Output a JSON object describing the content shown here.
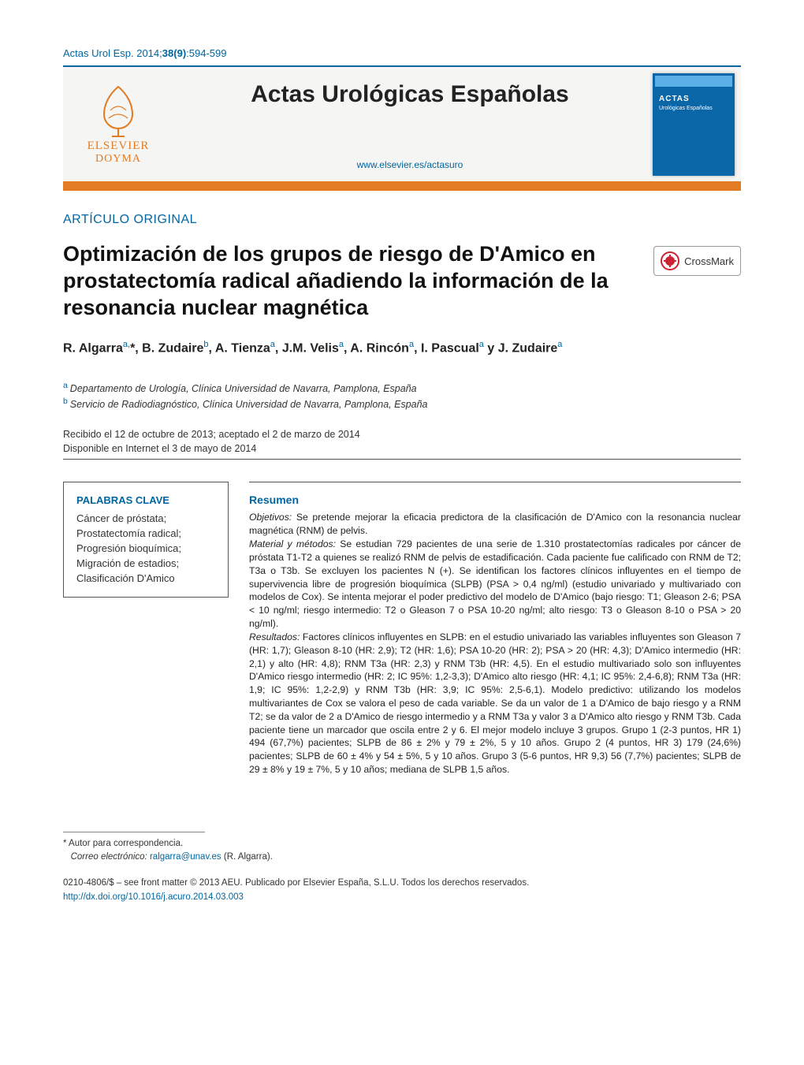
{
  "running_head": {
    "journal_abbrev": "Actas Urol Esp.",
    "year": "2014",
    "volume": "38",
    "issue": "9",
    "pages": "594-599"
  },
  "masthead": {
    "publisher_top": "ELSEVIER",
    "publisher_bottom": "DOYMA",
    "journal_title": "Actas Urológicas Españolas",
    "journal_url": "www.elsevier.es/actasuro",
    "cover_brand_top": "ACTAS",
    "cover_brand_sub": "Urológicas Españolas"
  },
  "section_label": "ARTÍCULO ORIGINAL",
  "article_title": "Optimización de los grupos de riesgo de D'Amico en prostatectomía radical añadiendo la información de la resonancia nuclear magnética",
  "crossmark_label": "CrossMark",
  "authors_html": "R. Algarra<sup>a,</sup>*, B. Zudaire<sup>b</sup>, A. Tienza<sup>a</sup>, J.M. Velis<sup>a</sup>, A. Rincón<sup>a</sup>, I. Pascual<sup>a</sup> y J. Zudaire<sup>a</sup>",
  "affiliations": [
    {
      "marker": "a",
      "text": "Departamento de Urología, Clínica Universidad de Navarra, Pamplona, España"
    },
    {
      "marker": "b",
      "text": "Servicio de Radiodiagnóstico, Clínica Universidad de Navarra, Pamplona, España"
    }
  ],
  "dates": {
    "received_accepted": "Recibido el 12 de octubre de 2013; aceptado el 2 de marzo de 2014",
    "online": "Disponible en Internet el 3 de mayo de 2014"
  },
  "keywords": {
    "heading": "PALABRAS CLAVE",
    "items": [
      "Cáncer de próstata;",
      "Prostatectomía radical;",
      "Progresión bioquímica;",
      "Migración de estadios;",
      "Clasificación D'Amico"
    ]
  },
  "abstract": {
    "heading": "Resumen",
    "body_html": "<i>Objetivos:</i> Se pretende mejorar la eficacia predictora de la clasificación de D'Amico con la resonancia nuclear magnética (RNM) de pelvis.<br><i>Material y métodos:</i> Se estudian 729 pacientes de una serie de 1.310 prostatectomías radicales por cáncer de próstata T1-T2 a quienes se realizó RNM de pelvis de estadificación. Cada paciente fue calificado con RNM de T2; T3a o T3b. Se excluyen los pacientes N (+). Se identifican los factores clínicos influyentes en el tiempo de supervivencia libre de progresión bioquímica (SLPB) (PSA > 0,4 ng/ml) (estudio univariado y multivariado con modelos de Cox). Se intenta mejorar el poder predictivo del modelo de D'Amico (bajo riesgo: T1; Gleason 2-6; PSA < 10 ng/ml; riesgo intermedio: T2 o Gleason 7 o PSA 10-20 ng/ml; alto riesgo: T3 o Gleason 8-10 o PSA > 20 ng/ml).<br><i>Resultados:</i> Factores clínicos influyentes en SLPB: en el estudio univariado las variables influyentes son Gleason 7 (HR: 1,7); Gleason 8-10 (HR: 2,9); T2 (HR: 1,6); PSA 10-20 (HR: 2); PSA > 20 (HR: 4,3); D'Amico intermedio (HR: 2,1) y alto (HR: 4,8); RNM T3a (HR: 2,3) y RNM T3b (HR: 4,5). En el estudio multivariado solo son influyentes D'Amico riesgo intermedio (HR: 2; IC 95%: 1,2-3,3); D'Amico alto riesgo (HR: 4,1; IC 95%: 2,4-6,8); RNM T3a (HR: 1,9; IC 95%: 1,2-2,9) y RNM T3b (HR: 3,9; IC 95%: 2,5-6,1). Modelo predictivo: utilizando los modelos multivariantes de Cox se valora el peso de cada variable. Se da un valor de 1 a D'Amico de bajo riesgo y a RNM T2; se da valor de 2 a D'Amico de riesgo intermedio y a RNM T3a y valor 3 a D'Amico alto riesgo y RNM T3b. Cada paciente tiene un marcador que oscila entre 2 y 6. El mejor modelo incluye 3 grupos. Grupo 1 (2-3 puntos, HR 1) 494 (67,7%) pacientes; SLPB de 86 ± 2% y 79 ± 2%, 5 y 10 años. Grupo 2 (4 puntos, HR 3) 179 (24,6%) pacientes; SLPB de 60 ± 4% y 54 ± 5%, 5 y 10 años. Grupo 3 (5-6 puntos, HR 9,3) 56 (7,7%) pacientes; SLPB de 29 ± 8% y 19 ± 7%, 5 y 10 años; mediana de SLPB 1,5 años."
  },
  "correspondence": {
    "star": "*",
    "label": "Autor para correspondencia.",
    "email_label": "Correo electrónico:",
    "email": "ralgarra@unav.es",
    "name": "(R. Algarra)."
  },
  "copyright": {
    "line": "0210-4806/$ – see front matter © 2013 AEU. Publicado por Elsevier España, S.L.U. Todos los derechos reservados.",
    "doi": "http://dx.doi.org/10.1016/j.acuro.2014.03.003"
  },
  "colors": {
    "brand_blue": "#0066a1",
    "accent_orange": "#e37b23",
    "cover_blue": "#0b66a8",
    "cover_light": "#5bb0e8",
    "text": "#222222"
  }
}
